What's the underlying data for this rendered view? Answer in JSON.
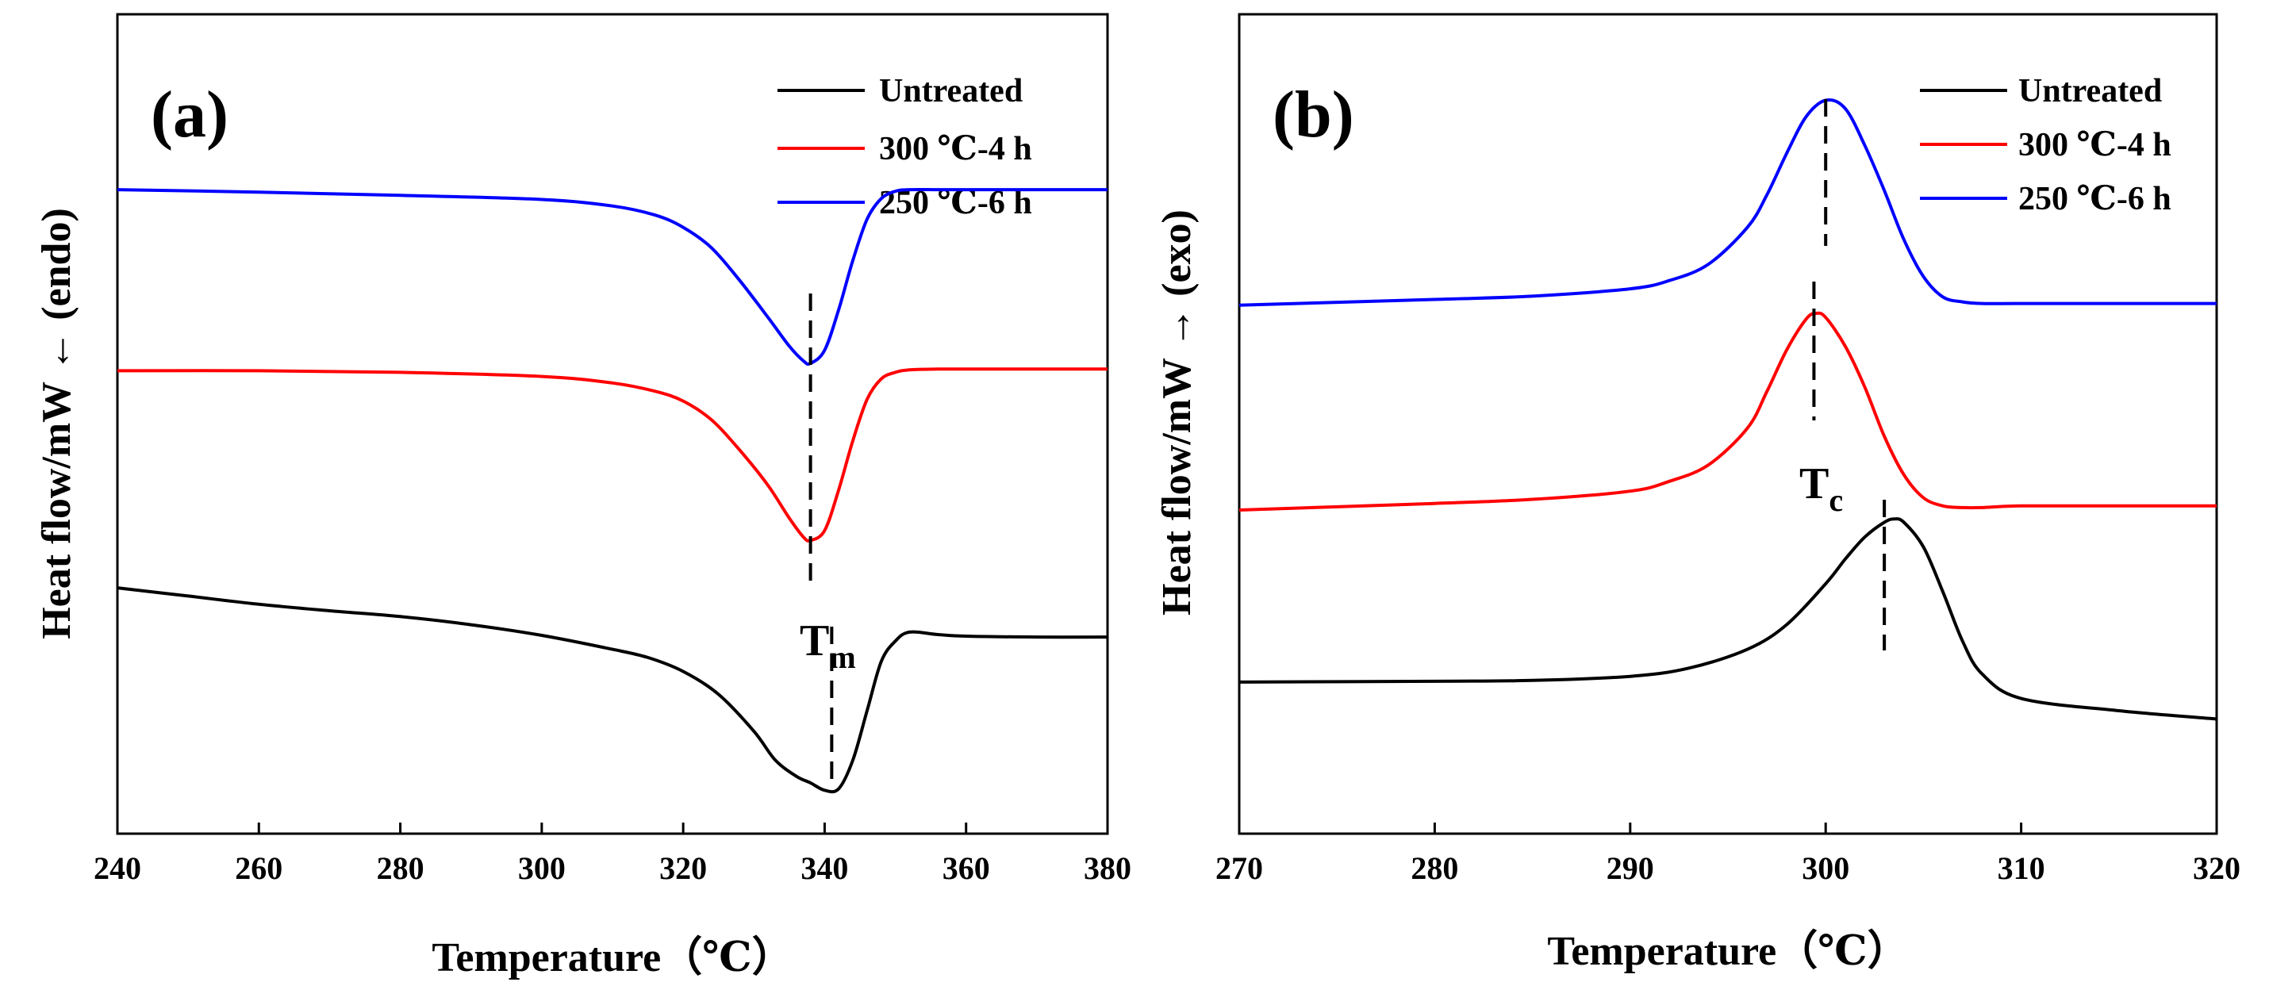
{
  "chart_data": [
    {
      "id": "a",
      "type": "line",
      "panel_label": "(a)",
      "xlabel": "Temperature（℃）",
      "ylabel": "Heat flow/mW ← (endo)",
      "xlim": [
        240,
        380
      ],
      "ylim": [
        0,
        100
      ],
      "y_ticks_shown": false,
      "x_ticks": [
        240,
        260,
        280,
        300,
        320,
        340,
        360,
        380
      ],
      "legend": {
        "placement": "top-right",
        "entries": [
          "Untreated",
          "300 ℃-4 h",
          "250 ℃-6 h"
        ]
      },
      "series": [
        {
          "name": "Untreated",
          "color": "#000000",
          "x": [
            240,
            250,
            260,
            270,
            280,
            290,
            300,
            310,
            315,
            320,
            325,
            330,
            333,
            336,
            338,
            340,
            342,
            344,
            346,
            348,
            350,
            352,
            356,
            360,
            370,
            380
          ],
          "y": [
            30,
            29,
            28,
            27.2,
            26.5,
            25.5,
            24.2,
            22.5,
            21.5,
            19.8,
            17,
            12.5,
            9,
            7,
            6.2,
            5.3,
            5.5,
            9,
            15,
            21,
            23.5,
            24.6,
            24.3,
            24.1,
            24,
            24
          ]
        },
        {
          "name": "300 ℃-4 h",
          "color": "#ff0000",
          "x": [
            240,
            260,
            280,
            300,
            310,
            316,
            320,
            324,
            328,
            332,
            335,
            337,
            338,
            340,
            342,
            344,
            346,
            348,
            350,
            352,
            356,
            360,
            370,
            380
          ],
          "y": [
            56.5,
            56.5,
            56.3,
            55.8,
            55,
            54,
            52.8,
            50.5,
            46.8,
            42.5,
            38.5,
            36.2,
            35.8,
            37,
            42,
            48,
            53,
            55.5,
            56.3,
            56.6,
            56.7,
            56.7,
            56.7,
            56.7
          ]
        },
        {
          "name": "250 ℃-6 h",
          "color": "#0000ff",
          "x": [
            240,
            260,
            280,
            300,
            310,
            316,
            320,
            324,
            328,
            332,
            335,
            337,
            338,
            340,
            342,
            344,
            346,
            348,
            350,
            352,
            356,
            360,
            370,
            380
          ],
          "y": [
            78.6,
            78.3,
            77.9,
            77.4,
            76.6,
            75.5,
            74,
            71.5,
            67.5,
            63,
            59.5,
            57.7,
            57.4,
            59,
            64,
            70,
            75,
            77.5,
            78.4,
            78.6,
            78.6,
            78.6,
            78.6,
            78.6
          ]
        }
      ],
      "peak_marker": {
        "label": "T",
        "subscript": "m",
        "values": [
          338,
          341
        ]
      }
    },
    {
      "id": "b",
      "type": "line",
      "panel_label": "(b)",
      "xlabel": "Temperature（℃）",
      "ylabel": "Heat flow/mW → (exo)",
      "xlim": [
        270,
        320
      ],
      "ylim": [
        0,
        100
      ],
      "y_ticks_shown": false,
      "x_ticks": [
        270,
        280,
        290,
        300,
        310,
        320
      ],
      "legend": {
        "placement": "top-right",
        "entries": [
          "Untreated",
          "300 ℃-4 h",
          "250 ℃-6 h"
        ]
      },
      "series": [
        {
          "name": "Untreated",
          "color": "#000000",
          "x": [
            270,
            280,
            285,
            290,
            293,
            296,
            298,
            300,
            301,
            302,
            303,
            303.5,
            304,
            305,
            306,
            307,
            308,
            310,
            315,
            320
          ],
          "y": [
            18.5,
            18.6,
            18.7,
            19.2,
            20.2,
            22.5,
            25.5,
            30.5,
            33.5,
            36.2,
            38,
            38.4,
            38,
            35,
            29.5,
            23.5,
            19.5,
            16.5,
            15,
            14
          ]
        },
        {
          "name": "300 ℃-4 h",
          "color": "#ff0000",
          "x": [
            270,
            280,
            285,
            290,
            292,
            294,
            296,
            297,
            298,
            299,
            299.5,
            300,
            301,
            302,
            303,
            304,
            305,
            306,
            307,
            308,
            310,
            315,
            320
          ],
          "y": [
            39.5,
            40.3,
            40.8,
            41.8,
            43,
            45,
            49.5,
            54,
            59,
            62.8,
            63.5,
            63,
            59.5,
            54.5,
            48.5,
            43.8,
            41,
            40,
            39.8,
            39.8,
            40,
            40,
            40
          ]
        },
        {
          "name": "250 ℃-6 h",
          "color": "#0000ff",
          "x": [
            270,
            280,
            285,
            290,
            292,
            294,
            296,
            297,
            298,
            299,
            300,
            301,
            302,
            303,
            304,
            305,
            306,
            307,
            308,
            310,
            315,
            320
          ],
          "y": [
            64.5,
            65.2,
            65.6,
            66.5,
            67.5,
            69.5,
            74,
            78,
            83,
            87.5,
            89.5,
            88.5,
            84,
            78.5,
            72.5,
            68,
            65.5,
            64.9,
            64.7,
            64.7,
            64.7,
            64.7
          ]
        }
      ],
      "peak_marker": {
        "label": "T",
        "subscript": "c",
        "values": [
          300,
          299.4,
          303
        ]
      }
    }
  ]
}
